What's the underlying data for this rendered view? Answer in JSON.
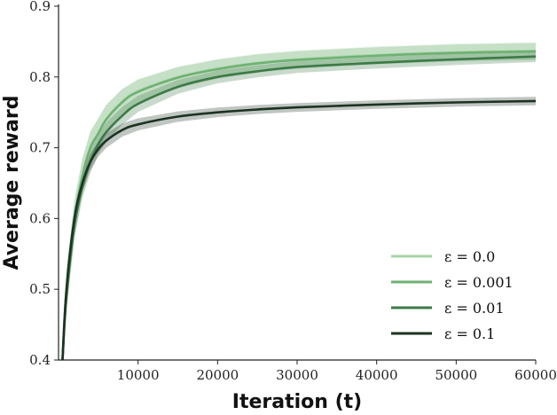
{
  "chart_data": {
    "type": "line",
    "xlabel": "Iteration (t)",
    "ylabel": "Average reward",
    "xlim": [
      0,
      60000
    ],
    "ylim": [
      0.4,
      0.9
    ],
    "x_ticks": [
      10000,
      20000,
      30000,
      40000,
      50000,
      60000
    ],
    "x_tick_labels": [
      "10000",
      "20000",
      "30000",
      "40000",
      "50000",
      "60000"
    ],
    "y_ticks": [
      0.4,
      0.5,
      0.6,
      0.7,
      0.8,
      0.9
    ],
    "y_tick_labels": [
      "0.4",
      "0.5",
      "0.6",
      "0.7",
      "0.8",
      "0.9"
    ],
    "grid": false,
    "legend_position": "bottom-right",
    "series": [
      {
        "name": "ε = 0.0",
        "color": "#a6d3a8",
        "x": [
          500,
          1000,
          2000,
          3000,
          4000,
          5000,
          6000,
          8000,
          10000,
          15000,
          20000,
          25000,
          30000,
          40000,
          50000,
          60000
        ],
        "y": [
          0.4,
          0.5,
          0.6,
          0.66,
          0.7,
          0.72,
          0.74,
          0.765,
          0.78,
          0.8,
          0.812,
          0.82,
          0.825,
          0.831,
          0.835,
          0.837
        ]
      },
      {
        "name": "ε = 0.001",
        "color": "#6fb173",
        "x": [
          500,
          1000,
          2000,
          3000,
          4000,
          5000,
          6000,
          8000,
          10000,
          15000,
          20000,
          25000,
          30000,
          40000,
          50000,
          60000
        ],
        "y": [
          0.4,
          0.5,
          0.6,
          0.66,
          0.7,
          0.72,
          0.74,
          0.764,
          0.779,
          0.799,
          0.811,
          0.819,
          0.824,
          0.83,
          0.834,
          0.836
        ]
      },
      {
        "name": "ε = 0.01",
        "color": "#3d7a48",
        "x": [
          500,
          1000,
          2000,
          3000,
          4000,
          5000,
          6000,
          8000,
          10000,
          15000,
          20000,
          25000,
          30000,
          40000,
          50000,
          60000
        ],
        "y": [
          0.4,
          0.49,
          0.59,
          0.645,
          0.68,
          0.705,
          0.722,
          0.745,
          0.762,
          0.786,
          0.8,
          0.808,
          0.814,
          0.82,
          0.825,
          0.829
        ]
      },
      {
        "name": "ε = 0.1",
        "color": "#1c3321",
        "x": [
          500,
          1000,
          2000,
          3000,
          4000,
          5000,
          6000,
          8000,
          10000,
          15000,
          20000,
          25000,
          30000,
          40000,
          50000,
          60000
        ],
        "y": [
          0.4,
          0.5,
          0.6,
          0.65,
          0.68,
          0.698,
          0.71,
          0.725,
          0.733,
          0.744,
          0.75,
          0.754,
          0.757,
          0.761,
          0.764,
          0.766
        ]
      }
    ]
  }
}
